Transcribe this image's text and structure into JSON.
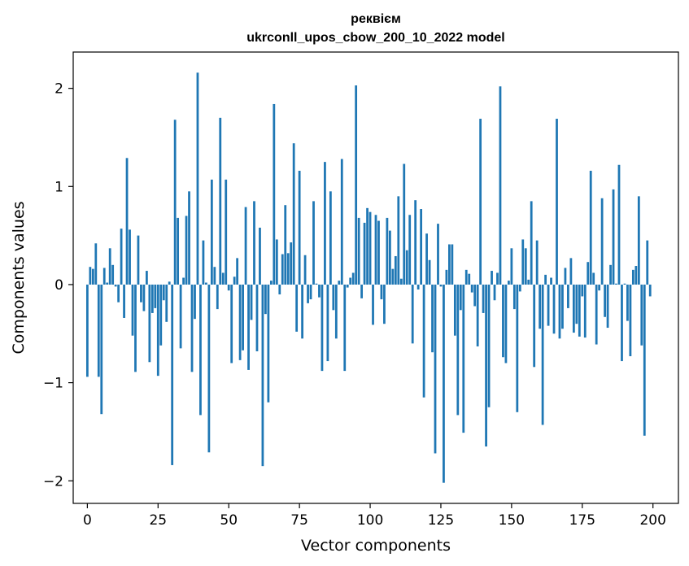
{
  "chart_data": {
    "type": "bar",
    "title": "реквієм",
    "subtitle": "ukrconll_upos_cbow_200_10_2022 model",
    "xlabel": "Vector components",
    "ylabel": "Components values",
    "xlim": [
      -5,
      209
    ],
    "ylim": [
      -2.23,
      2.37
    ],
    "xticks": [
      0,
      25,
      50,
      75,
      100,
      125,
      150,
      175,
      200
    ],
    "yticks": [
      -2,
      -1,
      0,
      1,
      2
    ],
    "ytick_labels": [
      "−2",
      "−1",
      "0",
      "1",
      "2"
    ],
    "bar_color": "#1f77b4",
    "grid": false,
    "x": [
      0,
      1,
      2,
      3,
      4,
      5,
      6,
      7,
      8,
      9,
      10,
      11,
      12,
      13,
      14,
      15,
      16,
      17,
      18,
      19,
      20,
      21,
      22,
      23,
      24,
      25,
      26,
      27,
      28,
      29,
      30,
      31,
      32,
      33,
      34,
      35,
      36,
      37,
      38,
      39,
      40,
      41,
      42,
      43,
      44,
      45,
      46,
      47,
      48,
      49,
      50,
      51,
      52,
      53,
      54,
      55,
      56,
      57,
      58,
      59,
      60,
      61,
      62,
      63,
      64,
      65,
      66,
      67,
      68,
      69,
      70,
      71,
      72,
      73,
      74,
      75,
      76,
      77,
      78,
      79,
      80,
      81,
      82,
      83,
      84,
      85,
      86,
      87,
      88,
      89,
      90,
      91,
      92,
      93,
      94,
      95,
      96,
      97,
      98,
      99,
      100,
      101,
      102,
      103,
      104,
      105,
      106,
      107,
      108,
      109,
      110,
      111,
      112,
      113,
      114,
      115,
      116,
      117,
      118,
      119,
      120,
      121,
      122,
      123,
      124,
      125,
      126,
      127,
      128,
      129,
      130,
      131,
      132,
      133,
      134,
      135,
      136,
      137,
      138,
      139,
      140,
      141,
      142,
      143,
      144,
      145,
      146,
      147,
      148,
      149,
      150,
      151,
      152,
      153,
      154,
      155,
      156,
      157,
      158,
      159,
      160,
      161,
      162,
      163,
      164,
      165,
      166,
      167,
      168,
      169,
      170,
      171,
      172,
      173,
      174,
      175,
      176,
      177,
      178,
      179,
      180,
      181,
      182,
      183,
      184,
      185,
      186,
      187,
      188,
      189,
      190,
      191,
      192,
      193,
      194,
      195,
      196,
      197,
      198,
      199
    ],
    "values": [
      -0.94,
      0.18,
      0.16,
      0.42,
      -0.94,
      -1.32,
      0.17,
      0.02,
      0.37,
      0.2,
      -0.02,
      -0.18,
      0.57,
      -0.34,
      1.29,
      0.56,
      -0.52,
      -0.89,
      0.5,
      -0.18,
      -0.27,
      0.14,
      -0.79,
      -0.29,
      -0.24,
      -0.93,
      -0.62,
      -0.16,
      -0.38,
      0.03,
      -1.84,
      1.68,
      0.68,
      -0.65,
      0.07,
      0.7,
      0.95,
      -0.89,
      -0.35,
      2.16,
      -1.33,
      0.45,
      0.02,
      -1.71,
      1.07,
      0.18,
      -0.25,
      1.7,
      0.12,
      1.07,
      -0.06,
      -0.8,
      0.08,
      0.27,
      -0.77,
      -0.67,
      0.79,
      -0.87,
      -0.36,
      0.85,
      -0.68,
      0.58,
      -1.85,
      -0.3,
      -1.2,
      0.04,
      1.84,
      0.46,
      -0.1,
      0.31,
      0.81,
      0.32,
      0.43,
      1.44,
      -0.48,
      1.16,
      -0.55,
      0.3,
      -0.19,
      -0.15,
      0.85,
      0.01,
      -0.13,
      -0.88,
      1.25,
      -0.78,
      0.95,
      -0.26,
      -0.55,
      0.04,
      1.28,
      -0.88,
      -0.03,
      0.07,
      0.12,
      2.03,
      0.68,
      -0.14,
      0.63,
      0.78,
      0.74,
      -0.41,
      0.71,
      0.65,
      -0.15,
      -0.4,
      0.68,
      0.55,
      0.16,
      0.29,
      0.9,
      0.06,
      1.23,
      0.35,
      0.71,
      -0.6,
      0.86,
      -0.05,
      0.77,
      -1.15,
      0.52,
      0.25,
      -0.69,
      -1.72,
      0.62,
      -0.02,
      -2.02,
      0.15,
      0.41,
      0.41,
      -0.52,
      -1.33,
      -0.26,
      -1.51,
      0.15,
      0.11,
      -0.08,
      -0.22,
      -0.63,
      1.69,
      -0.29,
      -1.65,
      -1.25,
      0.14,
      -0.16,
      0.12,
      2.02,
      -0.74,
      -0.8,
      0.04,
      0.37,
      -0.25,
      -1.3,
      -0.07,
      0.46,
      0.37,
      0.05,
      0.85,
      -0.84,
      0.45,
      -0.45,
      -1.43,
      0.1,
      -0.42,
      0.07,
      -0.5,
      1.69,
      -0.55,
      -0.45,
      0.17,
      -0.24,
      0.27,
      -0.49,
      -0.4,
      -0.53,
      -0.12,
      -0.54,
      0.23,
      1.16,
      0.12,
      -0.61,
      -0.06,
      0.88,
      -0.33,
      -0.44,
      0.2,
      0.97,
      0.01,
      1.22,
      -0.78,
      0.01,
      -0.37,
      -0.73,
      0.15,
      0.19,
      0.9,
      -0.62,
      -1.54,
      0.45,
      -0.12
    ]
  }
}
